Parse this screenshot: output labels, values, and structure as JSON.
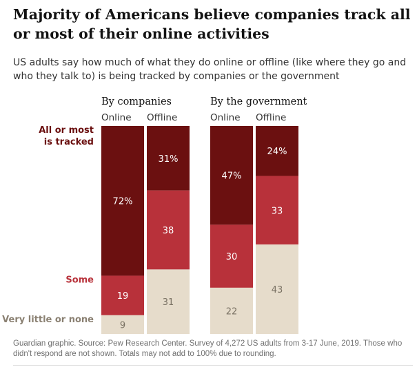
{
  "header": {
    "title": "Majority of Americans believe companies track all or most of their online activities",
    "subtitle": "US adults say how much of what they do online or offline (like where they go and who they talk to) is being tracked by companies or the government"
  },
  "footer": {
    "note": "Guardian graphic. Source: Pew Research Center. Survey of 4,272 US adults from 3-17 June, 2019. Those who didn't respond are not shown. Totals may not add to 100% due to rounding."
  },
  "colors": {
    "all_or_most": "#6b1010",
    "some": "#b8313a",
    "very_little": "#e6dccb",
    "label_all": "#6b1010",
    "label_some": "#b8313a",
    "label_little": "#8a8072"
  },
  "chart_data": {
    "type": "bar",
    "stacked": true,
    "orientation": "vertical",
    "legend_labels": [
      "All or most\nis tracked",
      "Some",
      "Very little or none"
    ],
    "groups": [
      {
        "name": "By companies",
        "bars": [
          {
            "name": "Online",
            "values": [
              72,
              19,
              9
            ],
            "labels": [
              "72%",
              "19",
              "9"
            ]
          },
          {
            "name": "Offline",
            "values": [
              31,
              38,
              31
            ],
            "labels": [
              "31%",
              "38",
              "31"
            ]
          }
        ]
      },
      {
        "name": "By the government",
        "bars": [
          {
            "name": "Online",
            "values": [
              47,
              30,
              22
            ],
            "labels": [
              "47%",
              "30",
              "22"
            ]
          },
          {
            "name": "Offline",
            "values": [
              24,
              33,
              43
            ],
            "labels": [
              "24%",
              "33",
              "43"
            ]
          }
        ]
      }
    ]
  }
}
